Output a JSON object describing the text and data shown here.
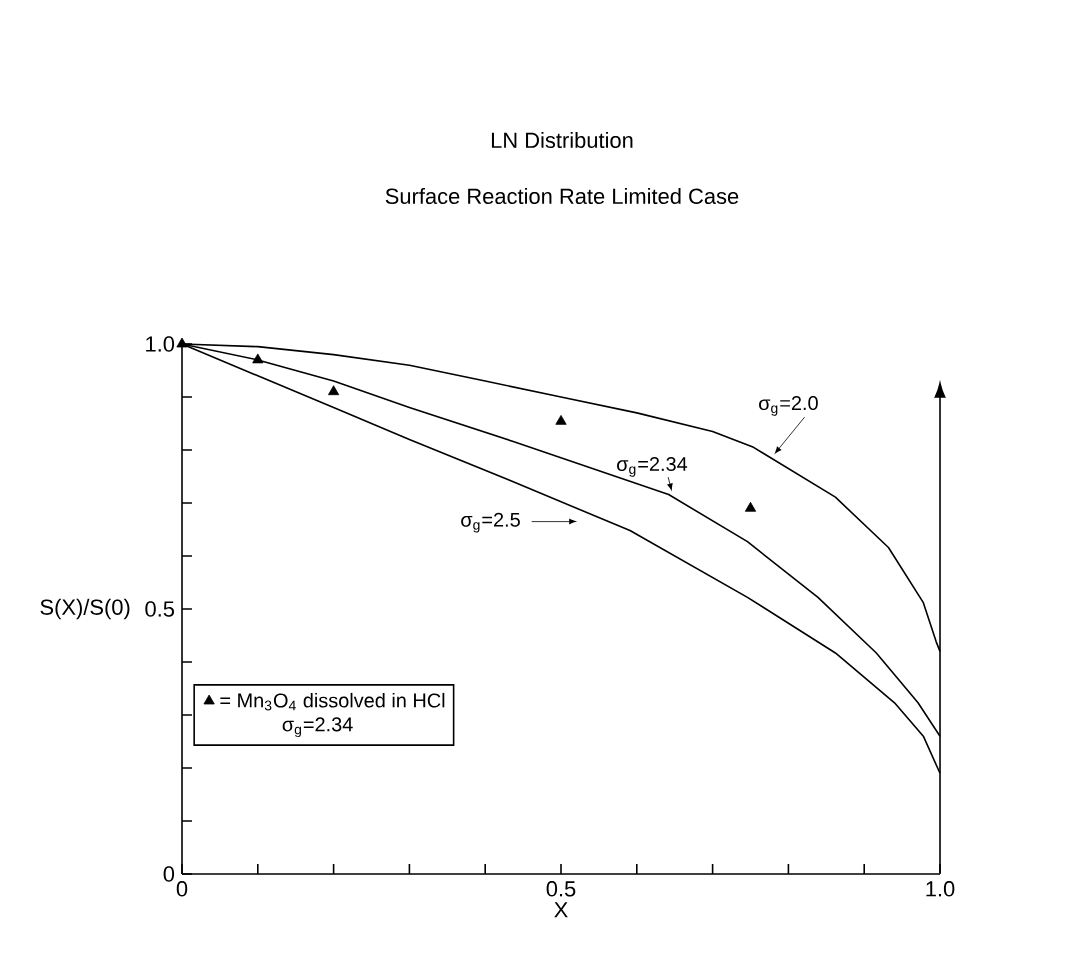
{
  "chart_data": {
    "type": "line",
    "title": "LN Distribution",
    "subtitle": "Surface Reaction Rate Limited Case",
    "xlabel": "X",
    "ylabel": "S(X)/S(0)",
    "xlim": [
      0,
      1
    ],
    "ylim": [
      0,
      1
    ],
    "xticks": [
      0,
      {
        "value": 0.1,
        "label": null
      },
      {
        "value": 0.2,
        "label": null
      },
      {
        "value": 0.3,
        "label": null
      },
      {
        "value": 0.4,
        "label": null
      },
      0.5,
      {
        "value": 0.6,
        "label": null
      },
      {
        "value": 0.7,
        "label": null
      },
      {
        "value": 0.8,
        "label": null
      },
      {
        "value": 0.9,
        "label": null
      },
      {
        "value": 1,
        "label": "1.0"
      }
    ],
    "yticks": [
      0,
      {
        "value": 0.1,
        "label": null
      },
      {
        "value": 0.2,
        "label": null
      },
      {
        "value": 0.3,
        "label": null
      },
      {
        "value": 0.4,
        "label": null
      },
      0.5,
      {
        "value": 0.6,
        "label": null
      },
      {
        "value": 0.7,
        "label": null
      },
      {
        "value": 0.8,
        "label": null
      },
      {
        "value": 0.9,
        "label": null
      },
      {
        "value": 1,
        "label": "1.0"
      }
    ],
    "series": [
      {
        "name": "σ$_{g}$=2.0",
        "color": "#000000",
        "x": [
          0,
          0.1,
          0.2,
          0.3,
          0.4,
          0.5,
          0.6,
          0.7,
          0.754,
          0.862,
          0.932,
          0.978,
          0.995,
          1.0
        ],
        "values": [
          1.0,
          0.995,
          0.98,
          0.96,
          0.93,
          0.9,
          0.87,
          0.835,
          0.805,
          0.711,
          0.616,
          0.512,
          0.438,
          0.42
        ]
      },
      {
        "name": "σ$_{g}$=2.34",
        "color": "#000000",
        "x": [
          0,
          0.1,
          0.2,
          0.3,
          0.437,
          0.642,
          0.746,
          0.839,
          0.916,
          0.971,
          1.0
        ],
        "values": [
          1.0,
          0.97,
          0.93,
          0.88,
          0.816,
          0.716,
          0.627,
          0.522,
          0.417,
          0.323,
          0.26
        ]
      },
      {
        "name": "σ$_{g}$=2.5",
        "color": "#000000",
        "x": [
          0,
          0.1,
          0.2,
          0.3,
          0.437,
          0.591,
          0.746,
          0.862,
          0.94,
          0.978,
          1.0
        ],
        "values": [
          1.0,
          0.94,
          0.88,
          0.82,
          0.74,
          0.648,
          0.522,
          0.417,
          0.323,
          0.26,
          0.19
        ]
      },
      {
        "name": "= Mn$_{3}$O$_{4}$ dissolved in HCl",
        "type": "scatter",
        "color": "#000000",
        "marker": "triangle",
        "x": [
          0,
          0.1,
          0.2,
          0.5,
          0.75
        ],
        "values": [
          1.0,
          0.97,
          0.91,
          0.854,
          0.69
        ]
      }
    ],
    "annotations": [
      "σ$_{g}$=2.34"
    ],
    "legend": "left"
  }
}
